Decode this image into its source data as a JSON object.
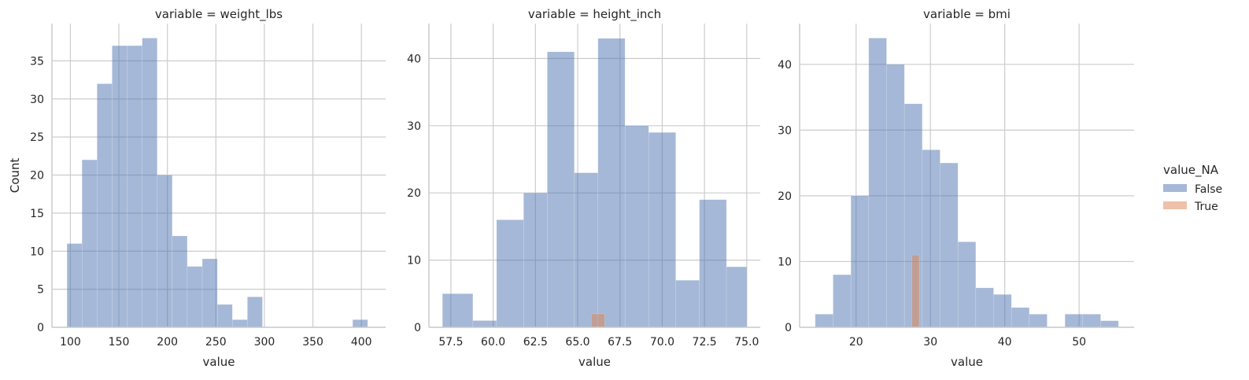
{
  "chart_data": [
    {
      "type": "bar",
      "title": "variable = weight_lbs",
      "xlabel": "value",
      "ylabel": "Count",
      "xlim": [
        81,
        425
      ],
      "ylim": [
        0,
        39.9
      ],
      "xticks": [
        100,
        150,
        200,
        250,
        300,
        350,
        400
      ],
      "yticks": [
        0,
        5,
        10,
        15,
        20,
        25,
        30,
        35
      ],
      "grid": true,
      "series": [
        {
          "name": "False",
          "bins": [
            [
              96.5,
              112,
              11
            ],
            [
              112,
              127.5,
              22
            ],
            [
              127.5,
              143,
              32
            ],
            [
              143,
              158.5,
              37
            ],
            [
              158.5,
              174,
              37
            ],
            [
              174,
              189.5,
              38
            ],
            [
              189.5,
              205,
              20
            ],
            [
              205,
              220.5,
              12
            ],
            [
              220.5,
              236,
              8
            ],
            [
              236,
              251.5,
              9
            ],
            [
              251.5,
              267,
              3
            ],
            [
              267,
              282.5,
              1
            ],
            [
              282.5,
              298,
              4
            ],
            [
              298,
              313.5,
              0
            ],
            [
              313.5,
              329,
              0
            ],
            [
              329,
              344.5,
              0
            ],
            [
              344.5,
              360,
              0
            ],
            [
              360,
              375.5,
              0
            ],
            [
              375.5,
              391,
              0
            ],
            [
              391,
              406.5,
              1
            ]
          ]
        },
        {
          "name": "True",
          "bins": []
        }
      ]
    },
    {
      "type": "bar",
      "title": "variable = height_inch",
      "xlabel": "value",
      "ylabel": "",
      "xlim": [
        56.2,
        75.8
      ],
      "ylim": [
        0,
        45.2
      ],
      "xticks": [
        "57.5",
        "60.0",
        "62.5",
        "65.0",
        "67.5",
        "70.0",
        "72.5",
        "75.0"
      ],
      "yticks": [
        0,
        10,
        20,
        30,
        40
      ],
      "grid": true,
      "series": [
        {
          "name": "False",
          "bins": [
            [
              57,
              58.8,
              5
            ],
            [
              58.8,
              60.2,
              1
            ],
            [
              60.2,
              61.8,
              16
            ],
            [
              61.8,
              63.2,
              20
            ],
            [
              63.2,
              64.8,
              41
            ],
            [
              64.8,
              66.2,
              23
            ],
            [
              66.2,
              67.8,
              43
            ],
            [
              67.8,
              69.2,
              30
            ],
            [
              69.2,
              70.8,
              29
            ],
            [
              70.8,
              72.2,
              7
            ],
            [
              72.2,
              73.8,
              19
            ],
            [
              73.8,
              75,
              9
            ]
          ]
        },
        {
          "name": "True",
          "bins": [
            [
              65.8,
              66.6,
              2
            ]
          ]
        }
      ]
    },
    {
      "type": "bar",
      "title": "variable = bmi",
      "xlabel": "value",
      "ylabel": "",
      "xlim": [
        12.4,
        57.4
      ],
      "ylim": [
        0,
        46.2
      ],
      "xticks": [
        20,
        30,
        40,
        50
      ],
      "yticks": [
        0,
        10,
        20,
        30,
        40
      ],
      "grid": true,
      "series": [
        {
          "name": "False",
          "bins": [
            [
              14.5,
              16.9,
              2
            ],
            [
              16.9,
              19.3,
              8
            ],
            [
              19.3,
              21.7,
              20
            ],
            [
              21.7,
              24.1,
              44
            ],
            [
              24.1,
              26.5,
              40
            ],
            [
              26.5,
              28.9,
              34
            ],
            [
              28.9,
              31.3,
              27
            ],
            [
              31.3,
              33.7,
              25
            ],
            [
              33.7,
              36.1,
              13
            ],
            [
              36.1,
              38.5,
              6
            ],
            [
              38.5,
              40.9,
              5
            ],
            [
              40.9,
              43.3,
              3
            ],
            [
              43.3,
              45.7,
              2
            ],
            [
              45.7,
              48.1,
              0
            ],
            [
              48.1,
              50.5,
              2
            ],
            [
              50.5,
              52.9,
              2
            ],
            [
              52.9,
              55.3,
              1
            ]
          ]
        },
        {
          "name": "True",
          "bins": [
            [
              27.5,
              28.5,
              11
            ]
          ]
        }
      ]
    }
  ],
  "legend": {
    "title": "value_NA",
    "placement": "right",
    "items": [
      {
        "label": "False",
        "color": "#4c72b0"
      },
      {
        "label": "True",
        "color": "#dd8452"
      }
    ]
  },
  "colors": {
    "False": "#4c72b0",
    "True": "#dd8452",
    "grid": "#cccccc",
    "axis": "#cccccc",
    "text": "#262626"
  }
}
